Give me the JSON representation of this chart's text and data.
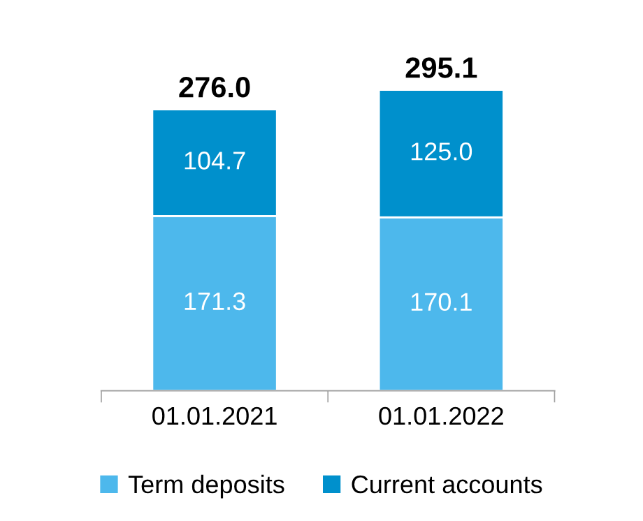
{
  "chart_data": {
    "type": "bar",
    "stacked": true,
    "categories": [
      "01.01.2021",
      "01.01.2022"
    ],
    "series": [
      {
        "name": "Term deposits",
        "color": "#4db8ec",
        "values": [
          171.3,
          170.1
        ],
        "value_labels": [
          "171.3",
          "170.1"
        ]
      },
      {
        "name": "Current accounts",
        "color": "#0090cc",
        "values": [
          104.7,
          125.0
        ],
        "value_labels": [
          "104.7",
          "125.0"
        ]
      }
    ],
    "totals": [
      "276.0",
      "295.1"
    ],
    "tick_labels": "x",
    "grid": false,
    "legend": "bottom"
  }
}
